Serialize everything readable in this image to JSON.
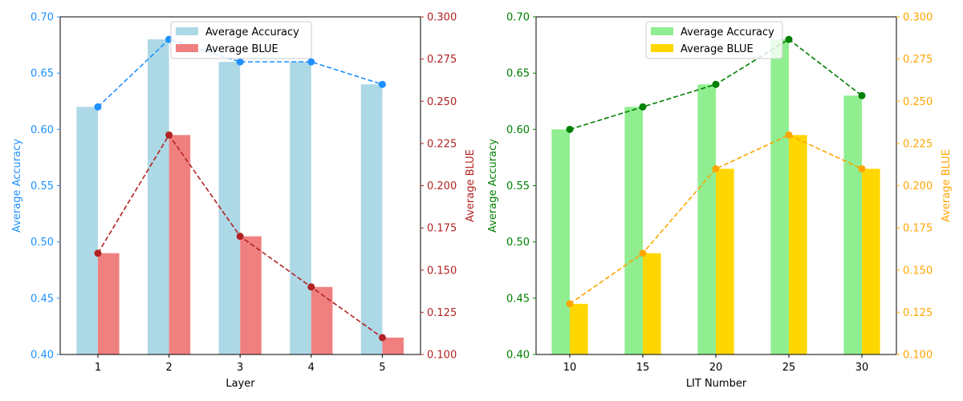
{
  "chart_data": [
    {
      "type": "bar",
      "xlabel": "Layer",
      "categories": [
        "1",
        "2",
        "3",
        "4",
        "5"
      ],
      "y_left": {
        "label": "Average Accuracy",
        "lim": [
          0.4,
          0.7
        ],
        "ticks": [
          "0.40",
          "0.45",
          "0.50",
          "0.55",
          "0.60",
          "0.65",
          "0.70"
        ],
        "color": "#1e90ff"
      },
      "y_right": {
        "label": "Average BLUE",
        "lim": [
          0.1,
          0.3
        ],
        "ticks": [
          "0.100",
          "0.125",
          "0.150",
          "0.175",
          "0.200",
          "0.225",
          "0.250",
          "0.275",
          "0.300"
        ],
        "color": "#b22222"
      },
      "series": [
        {
          "name": "Average Accuracy",
          "axis": "left",
          "values": [
            0.62,
            0.68,
            0.66,
            0.66,
            0.64
          ],
          "bar_color": "#add8e6",
          "line_color": "#1e90ff"
        },
        {
          "name": "Average BLUE",
          "axis": "right",
          "values": [
            0.16,
            0.23,
            0.17,
            0.14,
            0.11
          ],
          "bar_color": "#f08080",
          "line_color": "#b22222"
        }
      ],
      "legend": "upper center",
      "grid": false
    },
    {
      "type": "bar",
      "xlabel": "LIT Number",
      "categories": [
        "10",
        "15",
        "20",
        "25",
        "30"
      ],
      "y_left": {
        "label": "Average Accuracy",
        "lim": [
          0.4,
          0.7
        ],
        "ticks": [
          "0.40",
          "0.45",
          "0.50",
          "0.55",
          "0.60",
          "0.65",
          "0.70"
        ],
        "color": "#008000"
      },
      "y_right": {
        "label": "Average BLUE",
        "lim": [
          0.1,
          0.3
        ],
        "ticks": [
          "0.100",
          "0.125",
          "0.150",
          "0.175",
          "0.200",
          "0.225",
          "0.250",
          "0.275",
          "0.300"
        ],
        "color": "#ffa500"
      },
      "series": [
        {
          "name": "Average Accuracy",
          "axis": "left",
          "values": [
            0.6,
            0.62,
            0.64,
            0.68,
            0.63
          ],
          "bar_color": "#90ee90",
          "line_color": "#008000"
        },
        {
          "name": "Average BLUE",
          "axis": "right",
          "values": [
            0.13,
            0.16,
            0.21,
            0.23,
            0.21
          ],
          "bar_color": "#ffd700",
          "line_color": "#ffa500"
        }
      ],
      "legend": "upper center",
      "grid": false
    }
  ]
}
